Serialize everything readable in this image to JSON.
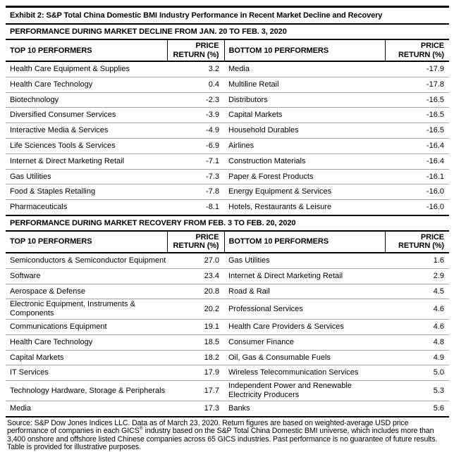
{
  "title": "Exhibit 2: S&P Total China Domestic BMI Industry Performance in Recent Market Decline and Recovery",
  "columns": {
    "top_label": "TOP 10 PERFORMERS",
    "bottom_label": "BOTTOM 10 PERFORMERS",
    "price_line1": "PRICE",
    "price_line2": "RETURN (%)"
  },
  "tables": [
    {
      "section_title": "PERFORMANCE DURING MARKET DECLINE FROM JAN. 20 TO FEB. 3, 2020",
      "rows": [
        {
          "top": "Health Care Equipment & Supplies",
          "top_return": "3.2",
          "bottom": "Media",
          "bottom_return": "-17.9"
        },
        {
          "top": "Health Care Technology",
          "top_return": "0.4",
          "bottom": "Multiline Retail",
          "bottom_return": "-17.8"
        },
        {
          "top": "Biotechnology",
          "top_return": "-2.3",
          "bottom": "Distributors",
          "bottom_return": "-16.5"
        },
        {
          "top": "Diversified Consumer Services",
          "top_return": "-3.9",
          "bottom": "Capital Markets",
          "bottom_return": "-16.5"
        },
        {
          "top": "Interactive Media & Services",
          "top_return": "-4.9",
          "bottom": "Household Durables",
          "bottom_return": "-16.5"
        },
        {
          "top": "Life Sciences Tools & Services",
          "top_return": "-6.9",
          "bottom": "Airlines",
          "bottom_return": "-16.4"
        },
        {
          "top": "Internet & Direct Marketing Retail",
          "top_return": "-7.1",
          "bottom": "Construction Materials",
          "bottom_return": "-16.4"
        },
        {
          "top": "Gas Utilities",
          "top_return": "-7.3",
          "bottom": "Paper & Forest Products",
          "bottom_return": "-16.1"
        },
        {
          "top": "Food & Staples Retailing",
          "top_return": "-7.8",
          "bottom": "Energy Equipment & Services",
          "bottom_return": "-16.0"
        },
        {
          "top": "Pharmaceuticals",
          "top_return": "-8.1",
          "bottom": "Hotels, Restaurants & Leisure",
          "bottom_return": "-16.0"
        }
      ]
    },
    {
      "section_title": "PERFORMANCE DURING MARKET RECOVERY FROM FEB. 3 TO FEB. 20, 2020",
      "rows": [
        {
          "top": "Semiconductors & Semiconductor Equipment",
          "top_return": "27.0",
          "bottom": "Gas Utilities",
          "bottom_return": "1.6"
        },
        {
          "top": "Software",
          "top_return": "23.4",
          "bottom": "Internet & Direct Marketing Retail",
          "bottom_return": "2.9"
        },
        {
          "top": "Aerospace & Defense",
          "top_return": "20.8",
          "bottom": "Road & Rail",
          "bottom_return": "4.5"
        },
        {
          "top": "Electronic Equipment, Instruments & Components",
          "top_return": "20.2",
          "bottom": "Professional Services",
          "bottom_return": "4.6"
        },
        {
          "top": "Communications Equipment",
          "top_return": "19.1",
          "bottom": "Health Care Providers & Services",
          "bottom_return": "4.6"
        },
        {
          "top": "Health Care Technology",
          "top_return": "18.5",
          "bottom": "Consumer Finance",
          "bottom_return": "4.8"
        },
        {
          "top": "Capital Markets",
          "top_return": "18.2",
          "bottom": "Oil, Gas & Consumable Fuels",
          "bottom_return": "4.9"
        },
        {
          "top": "IT Services",
          "top_return": "17.9",
          "bottom": "Wireless Telecommunication Services",
          "bottom_return": "5.0"
        },
        {
          "top": "Technology Hardware, Storage & Peripherals",
          "top_return": "17.7",
          "bottom": "Independent Power and Renewable Electricity Producers",
          "bottom_return": "5.3"
        },
        {
          "top": "Media",
          "top_return": "17.3",
          "bottom": "Banks",
          "bottom_return": "5.6"
        }
      ]
    }
  ],
  "footnote": {
    "part1": "Source: S&P Dow Jones Indices LLC. Data as of March 23, 2020. Return figures are based on weighted-average USD price performance of companies in each GICS",
    "sup": "®",
    "part2": " industry based on the S&P Total China Domestic BMI universe, which includes more than 3,400 onshore and offshore listed Chinese companies across 65 GICS industries. Past performance is no guarantee of future results. Table is provided for illustrative purposes."
  }
}
